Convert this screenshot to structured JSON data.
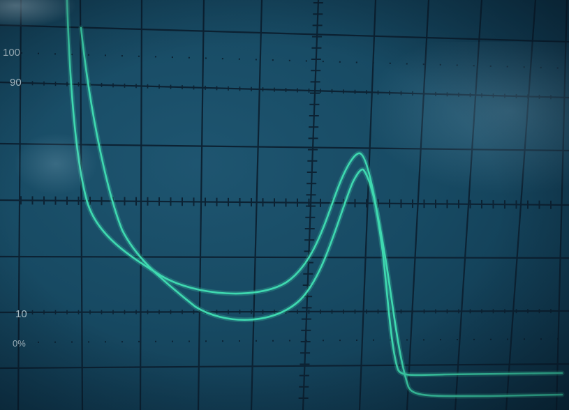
{
  "graticule_labels": {
    "top_100": "100",
    "mark_90": "90",
    "mark_10": "10",
    "mark_0": "0%"
  },
  "colors": {
    "trace": "#3fd9b0",
    "graticule": "#0c2233",
    "screen": "#174a63",
    "label": "#b9cfd8"
  }
}
